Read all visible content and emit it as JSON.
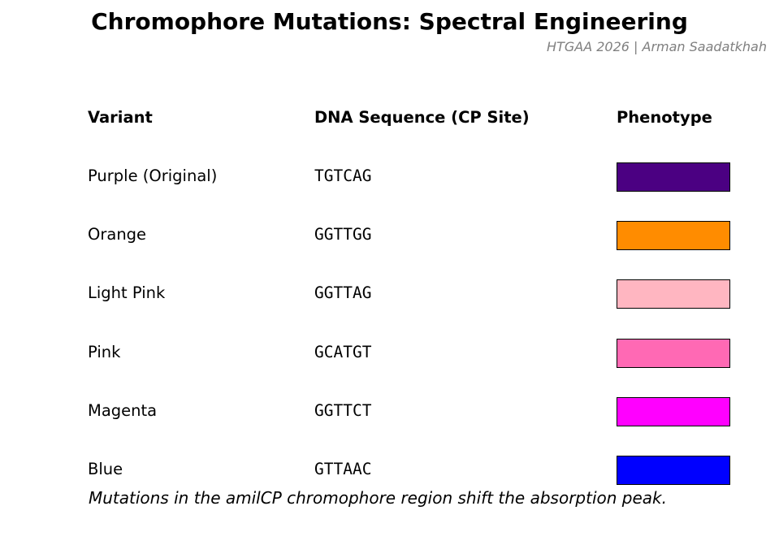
{
  "chart_data": {
    "type": "table",
    "title": "Chromophore Mutations: Spectral Engineering",
    "subtitle": "HTGAA 2026 | Arman Saadatkhah",
    "columns": [
      "Variant",
      "DNA Sequence (CP Site)",
      "Phenotype"
    ],
    "rows": [
      {
        "variant": "Purple (Original)",
        "sequence": "TGTCAG",
        "color": "#4B0082"
      },
      {
        "variant": "Orange",
        "sequence": "GGTTGG",
        "color": "#FF8C00"
      },
      {
        "variant": "Light Pink",
        "sequence": "GGTTAG",
        "color": "#FFB6C1"
      },
      {
        "variant": "Pink",
        "sequence": "GCATGT",
        "color": "#FF69B4"
      },
      {
        "variant": "Magenta",
        "sequence": "GGTTCT",
        "color": "#FF00FF"
      },
      {
        "variant": "Blue",
        "sequence": "GTTAAC",
        "color": "#0000FF"
      }
    ],
    "caption": "Mutations in the amilCP chromophore region shift the absorption peak."
  }
}
